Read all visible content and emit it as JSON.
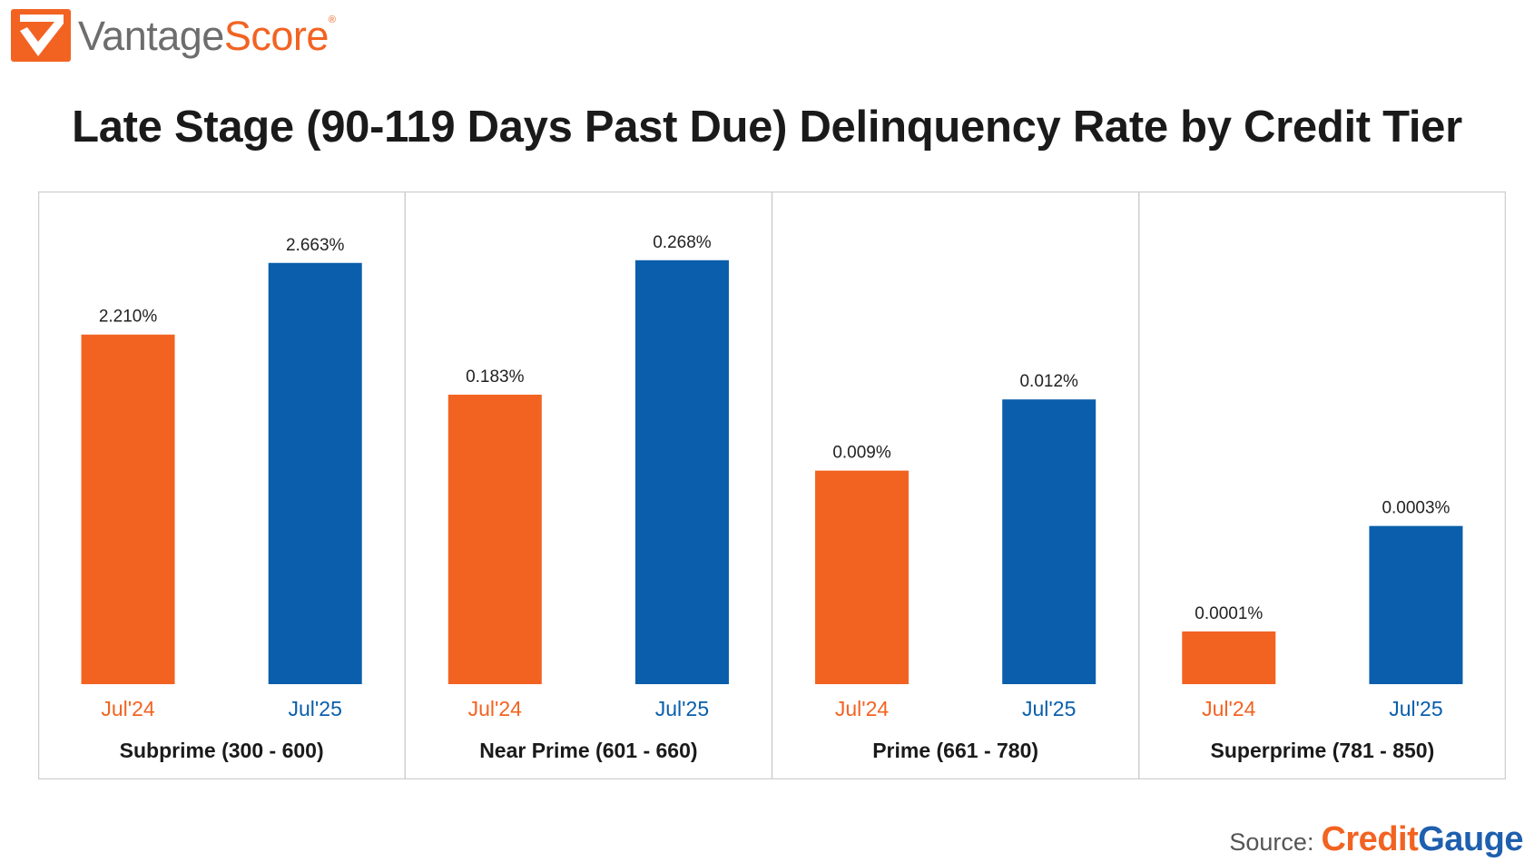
{
  "brand": {
    "name_part1": "Vantage",
    "name_part2": "Score",
    "tm": "®",
    "colors": {
      "orange": "#f26322",
      "gray": "#6d6d6d"
    }
  },
  "title": "Late Stage (90-119 Days Past Due) Delinquency Rate by Credit Tier",
  "source": {
    "label": "Source:",
    "brand_part1": "Credit",
    "brand_part2": "Gauge"
  },
  "chart_data": [
    {
      "type": "bar",
      "xlabel": "Subprime (300 - 600)",
      "categories": [
        "Jul'24",
        "Jul'25"
      ],
      "values": [
        2.21,
        2.663
      ],
      "value_labels": [
        "2.210%",
        "2.663%"
      ],
      "colors": [
        "#f26322",
        "#0a5eab"
      ],
      "ylim": [
        0,
        3.0
      ]
    },
    {
      "type": "bar",
      "xlabel": "Near Prime (601 - 660)",
      "categories": [
        "Jul'24",
        "Jul'25"
      ],
      "values": [
        0.183,
        0.268
      ],
      "value_labels": [
        "0.183%",
        "0.268%"
      ],
      "colors": [
        "#f26322",
        "#0a5eab"
      ],
      "ylim": [
        0,
        0.3
      ]
    },
    {
      "type": "bar",
      "xlabel": "Prime (661 - 780)",
      "categories": [
        "Jul'24",
        "Jul'25"
      ],
      "values": [
        0.009,
        0.012
      ],
      "value_labels": [
        "0.009%",
        "0.012%"
      ],
      "colors": [
        "#f26322",
        "#0a5eab"
      ],
      "ylim": [
        0,
        0.02
      ]
    },
    {
      "type": "bar",
      "xlabel": "Superprime (781 - 850)",
      "categories": [
        "Jul'24",
        "Jul'25"
      ],
      "values": [
        0.0001,
        0.0003
      ],
      "value_labels": [
        "0.0001%",
        "0.0003%"
      ],
      "colors": [
        "#f26322",
        "#0a5eab"
      ],
      "ylim": [
        0,
        0.0009
      ]
    }
  ]
}
